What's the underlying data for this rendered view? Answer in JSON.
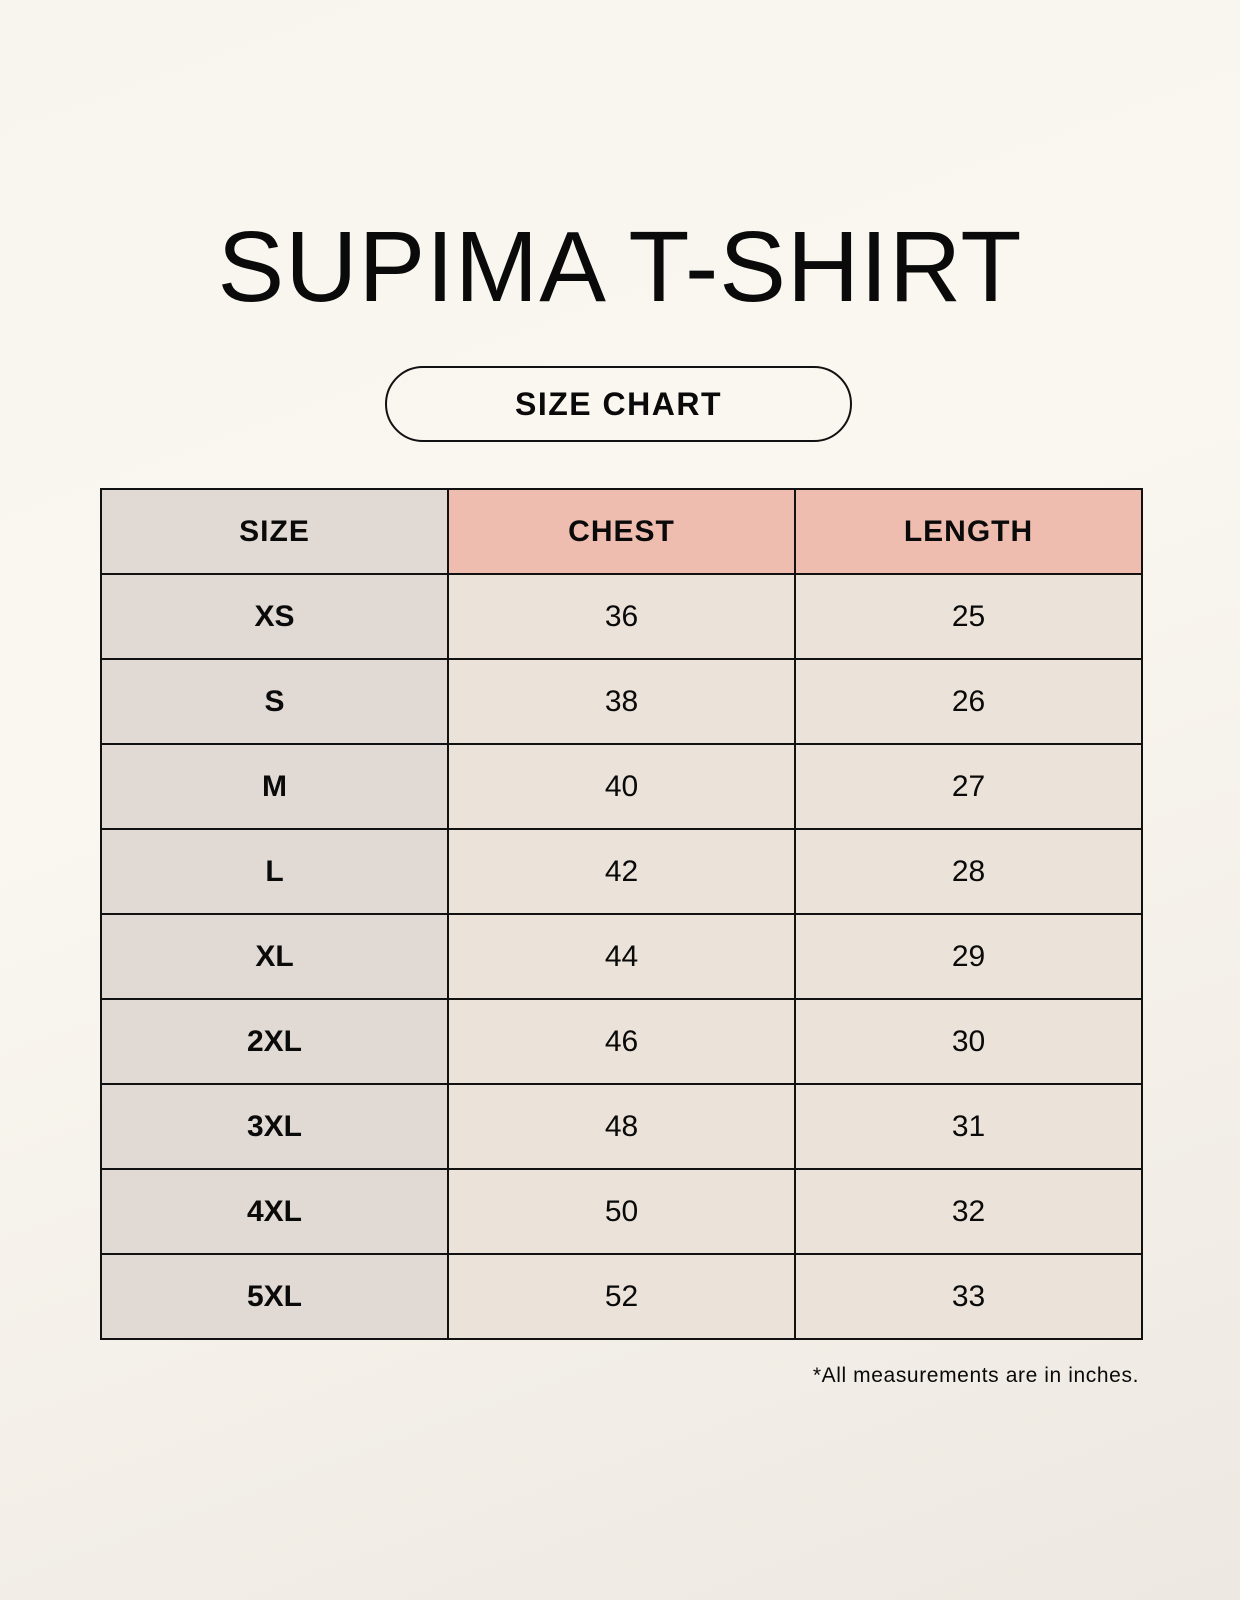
{
  "title": "SUPIMA T-SHIRT",
  "subtitle": "SIZE CHART",
  "colors": {
    "size_column": "#e1d9d3",
    "measure_header": "#eebdb0",
    "value_cells": "#ebe3d9"
  },
  "table": {
    "headers": [
      "SIZE",
      "CHEST",
      "LENGTH"
    ],
    "rows": [
      [
        "XS",
        "36",
        "25"
      ],
      [
        "S",
        "38",
        "26"
      ],
      [
        "M",
        "40",
        "27"
      ],
      [
        "L",
        "42",
        "28"
      ],
      [
        "XL",
        "44",
        "29"
      ],
      [
        "2XL",
        "46",
        "30"
      ],
      [
        "3XL",
        "48",
        "31"
      ],
      [
        "4XL",
        "50",
        "32"
      ],
      [
        "5XL",
        "52",
        "33"
      ]
    ]
  },
  "footnote": "*All measurements are in inches."
}
